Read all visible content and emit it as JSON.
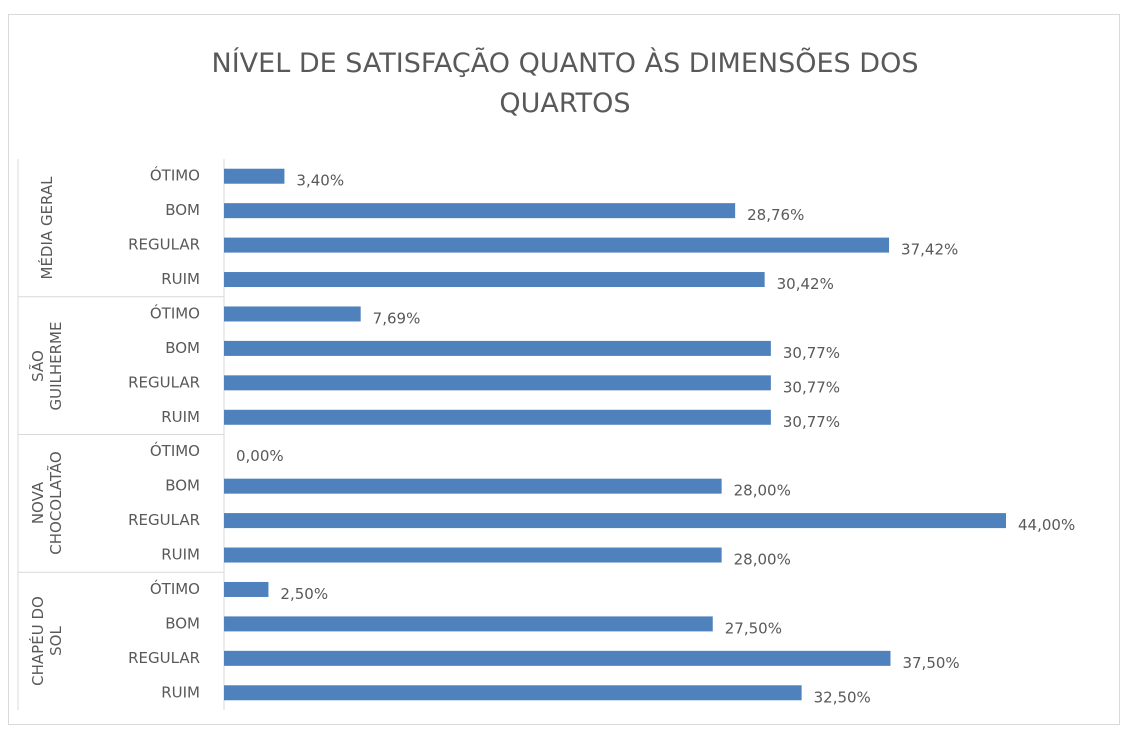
{
  "chart_data": {
    "type": "grouped-hbar",
    "title": "NÍVEL DE SATISFAÇÃO QUANTO ÀS DIMENSÕES DOS QUARTOS",
    "color": "#4f81bd",
    "groups": [
      {
        "name": "MÉDIA GERAL",
        "categories": [
          "ÓTIMO",
          "BOM",
          "REGULAR",
          "RUIM"
        ],
        "values": [
          3.4,
          28.76,
          37.42,
          30.42
        ],
        "value_labels": [
          "3,40%",
          "28,76%",
          "37,42%",
          "30,42%"
        ]
      },
      {
        "name": "SÃO GUILHERME",
        "categories": [
          "ÓTIMO",
          "BOM",
          "REGULAR",
          "RUIM"
        ],
        "values": [
          7.69,
          30.77,
          30.77,
          30.77
        ],
        "value_labels": [
          "7,69%",
          "30,77%",
          "30,77%",
          "30,77%"
        ]
      },
      {
        "name": "NOVA CHOCOLATÃO",
        "categories": [
          "ÓTIMO",
          "BOM",
          "REGULAR",
          "RUIM"
        ],
        "values": [
          0,
          28,
          44,
          28
        ],
        "value_labels": [
          "0,00%",
          "28,00%",
          "44,00%",
          "28,00%"
        ]
      },
      {
        "name": "CHAPÉU DO SOL",
        "categories": [
          "ÓTIMO",
          "BOM",
          "REGULAR",
          "RUIM"
        ],
        "values": [
          2.5,
          27.5,
          37.5,
          32.5
        ],
        "value_labels": [
          "2,50%",
          "27,50%",
          "37,50%",
          "32,50%"
        ]
      }
    ]
  }
}
